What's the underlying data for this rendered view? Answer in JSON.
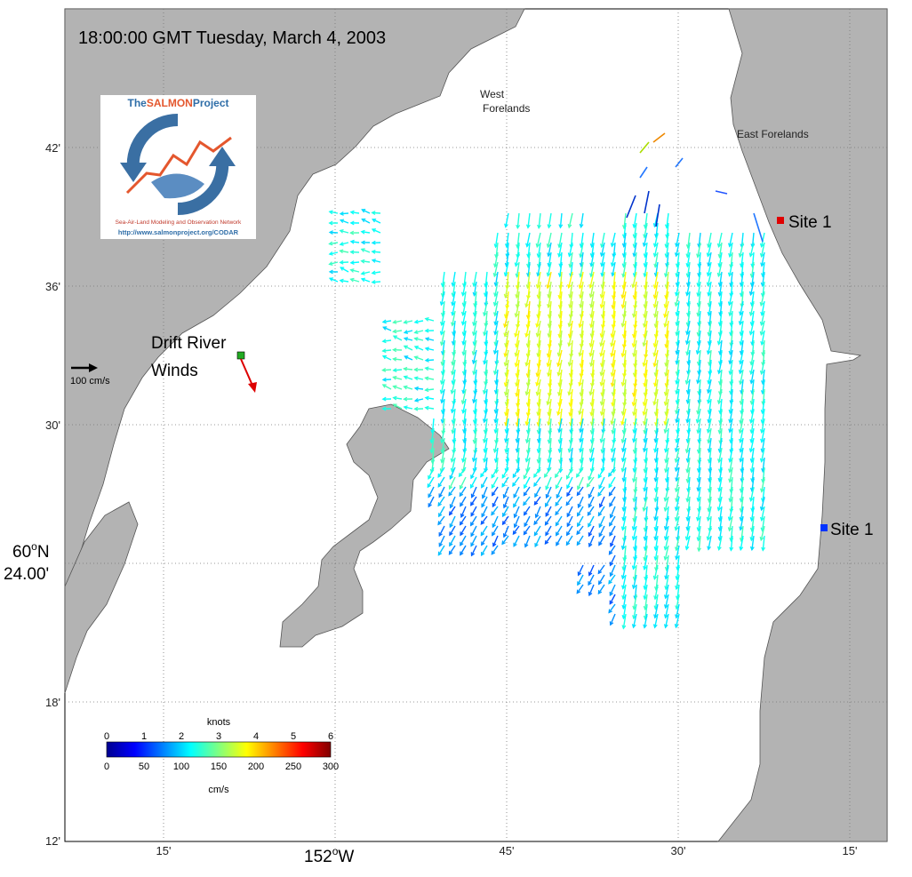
{
  "title": "18:00:00 GMT Tuesday, March 4, 2003",
  "latitude_ticks": [
    "42'",
    "36'",
    "30'",
    "18'",
    "12'"
  ],
  "latitude_major": {
    "degree": "60",
    "deg_symbol": "o",
    "hemisphere": "N",
    "minutes": "24.00'"
  },
  "longitude_ticks": [
    "15'",
    "45'",
    "30'",
    "15'"
  ],
  "longitude_major": {
    "degree": "152",
    "deg_symbol": "o",
    "hemisphere": "W"
  },
  "places": {
    "west_forelands_1": "West",
    "west_forelands_2": "Forelands",
    "east_forelands": "East Forelands",
    "site_red": "Site 1",
    "site_blue": "Site 1",
    "drift_river_1": "Drift River",
    "drift_river_2": "Winds"
  },
  "scale_arrow_label": "100 cm/s",
  "logo": {
    "title_prefix": "The",
    "title_highlight": "SALMON",
    "title_suffix": "Project",
    "subtitle": "Sea-Air-Land Modeling and Observation Network",
    "url": "http://www.salmonproject.org/CODAR"
  },
  "colorbar": {
    "top_unit": "knots",
    "bottom_unit": "cm/s",
    "knots_ticks": [
      "0",
      "1",
      "2",
      "3",
      "4",
      "5",
      "6"
    ],
    "cms_ticks": [
      "0",
      "50",
      "100",
      "150",
      "200",
      "250",
      "300"
    ],
    "range_cms": [
      0,
      300
    ]
  },
  "colors": {
    "land": "#b3b3b3",
    "water": "#ffffff",
    "site_red": "#e00000",
    "site_blue": "#0033ff",
    "wind_station": "#22aa22",
    "wind_arrow": "#dd0000"
  }
}
